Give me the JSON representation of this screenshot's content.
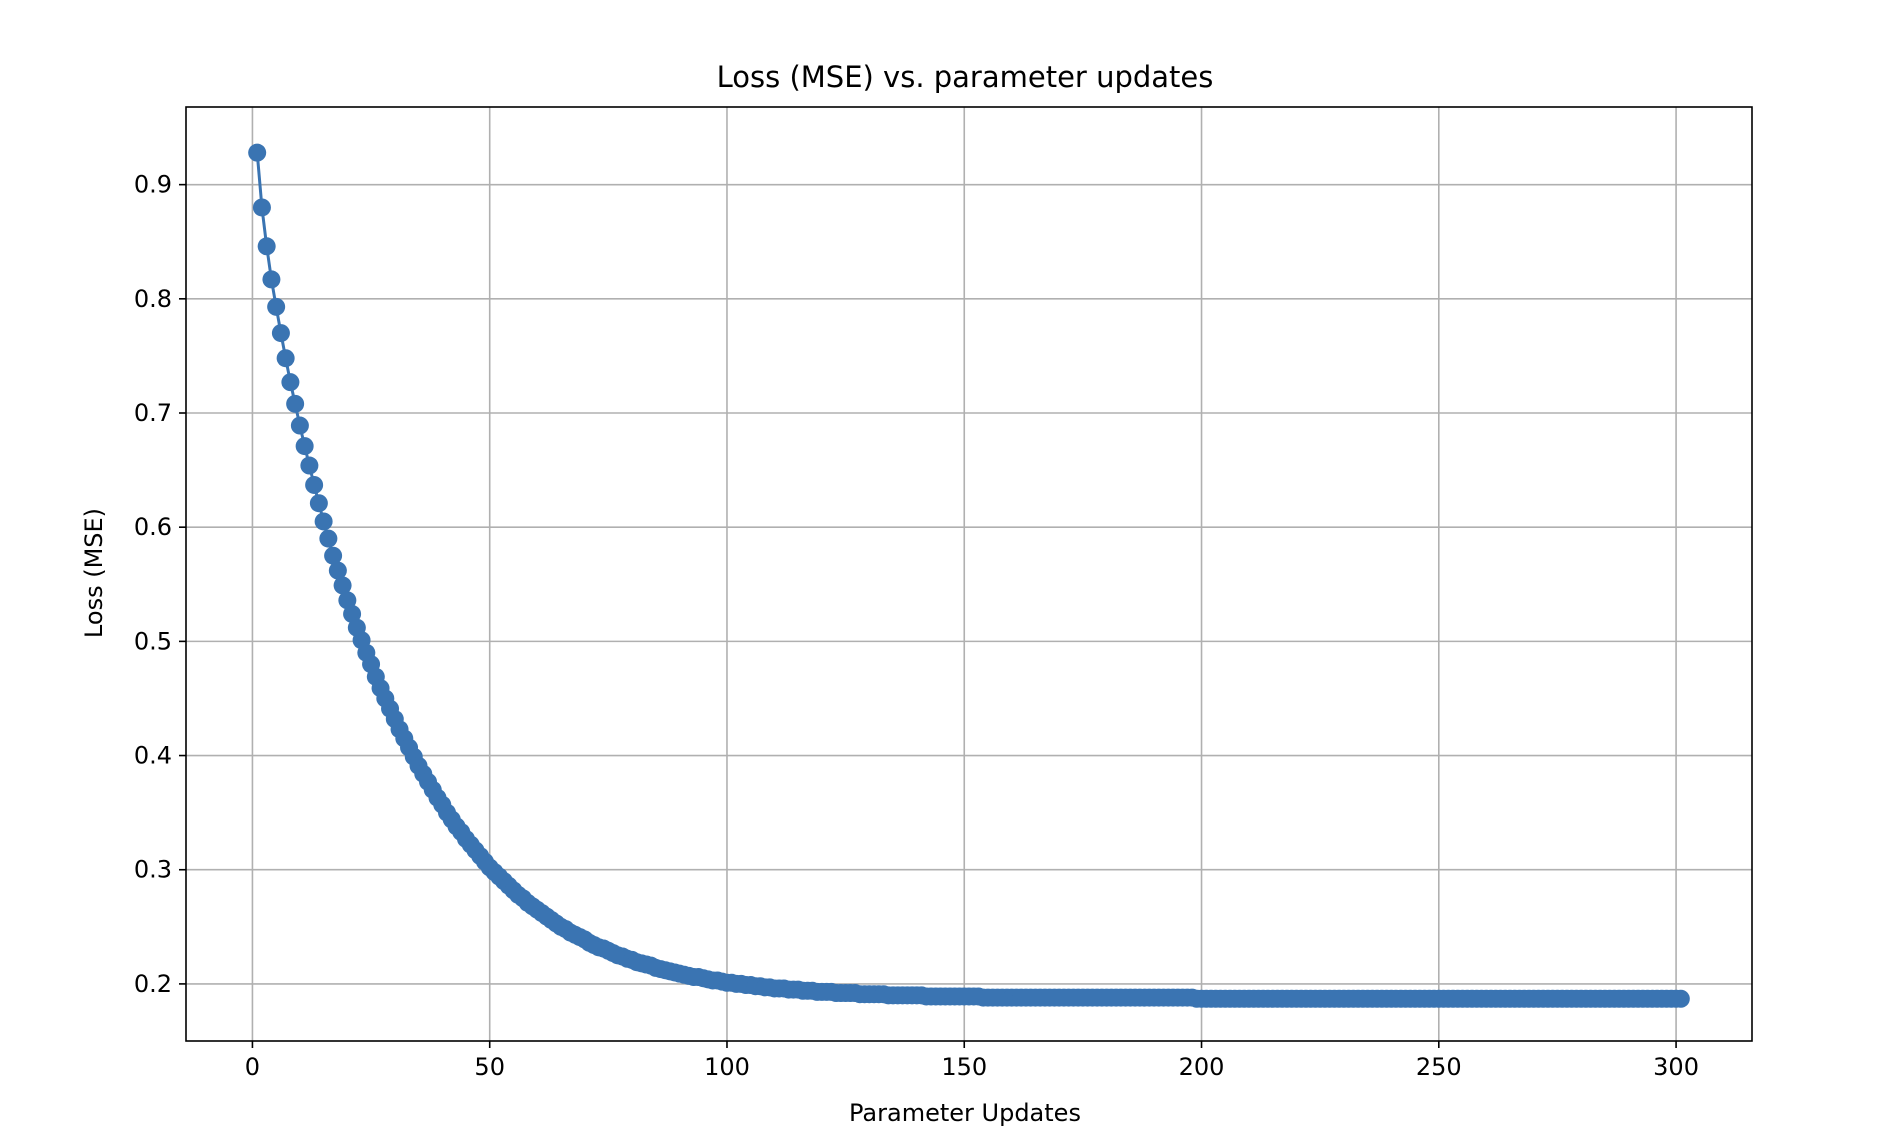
{
  "chart_data": {
    "type": "line",
    "title": "Loss (MSE) vs. parameter updates",
    "xlabel": "Parameter Updates",
    "ylabel": "Loss (MSE)",
    "xlim": [
      -14,
      316
    ],
    "ylim": [
      0.15,
      0.968
    ],
    "xticks": [
      0,
      50,
      100,
      150,
      200,
      250,
      300
    ],
    "yticks": [
      0.2,
      0.3,
      0.4,
      0.5,
      0.6,
      0.7,
      0.8,
      0.9
    ],
    "grid": true,
    "legend": "none",
    "marker": "circle",
    "series": [
      {
        "color": "#3a74b2",
        "x": [
          1,
          2,
          3,
          4,
          5,
          6,
          7,
          8,
          9,
          10,
          11,
          12,
          13,
          14,
          15,
          16,
          17,
          18,
          19,
          20,
          21,
          22,
          23,
          24,
          25,
          26,
          27,
          28,
          29,
          30,
          31,
          32,
          33,
          34,
          35,
          36,
          37,
          38,
          39,
          40,
          41,
          42,
          43,
          44,
          45,
          46,
          47,
          48,
          49,
          50,
          51,
          52,
          53,
          54,
          55,
          56,
          57,
          58,
          59,
          60,
          61,
          62,
          63,
          64,
          65,
          66,
          67,
          68,
          69,
          70,
          71,
          72,
          73,
          74,
          75,
          76,
          77,
          78,
          79,
          80,
          81,
          82,
          83,
          84,
          85,
          86,
          87,
          88,
          89,
          90,
          91,
          92,
          93,
          94,
          95,
          96,
          97,
          98,
          99,
          100,
          101,
          102,
          103,
          104,
          105,
          106,
          107,
          108,
          109,
          110,
          111,
          112,
          113,
          114,
          115,
          116,
          117,
          118,
          119,
          120,
          121,
          122,
          123,
          124,
          125,
          126,
          127,
          128,
          129,
          130,
          131,
          132,
          133,
          134,
          135,
          136,
          137,
          138,
          139,
          140,
          141,
          142,
          143,
          144,
          145,
          146,
          147,
          148,
          149,
          150,
          151,
          152,
          153,
          154,
          155,
          156,
          157,
          158,
          159,
          160,
          161,
          162,
          163,
          164,
          165,
          166,
          167,
          168,
          169,
          170,
          171,
          172,
          173,
          174,
          175,
          176,
          177,
          178,
          179,
          180,
          181,
          182,
          183,
          184,
          185,
          186,
          187,
          188,
          189,
          190,
          191,
          192,
          193,
          194,
          195,
          196,
          197,
          198,
          199,
          200,
          201,
          202,
          203,
          204,
          205,
          206,
          207,
          208,
          209,
          210,
          211,
          212,
          213,
          214,
          215,
          216,
          217,
          218,
          219,
          220,
          221,
          222,
          223,
          224,
          225,
          226,
          227,
          228,
          229,
          230,
          231,
          232,
          233,
          234,
          235,
          236,
          237,
          238,
          239,
          240,
          241,
          242,
          243,
          244,
          245,
          246,
          247,
          248,
          249,
          250,
          251,
          252,
          253,
          254,
          255,
          256,
          257,
          258,
          259,
          260,
          261,
          262,
          263,
          264,
          265,
          266,
          267,
          268,
          269,
          270,
          271,
          272,
          273,
          274,
          275,
          276,
          277,
          278,
          279,
          280,
          281,
          282,
          283,
          284,
          285,
          286,
          287,
          288,
          289,
          290,
          291,
          292,
          293,
          294,
          295,
          296,
          297,
          298,
          299,
          300,
          301
        ],
        "y": [
          0.928,
          0.88,
          0.846,
          0.817,
          0.793,
          0.77,
          0.748,
          0.727,
          0.708,
          0.689,
          0.671,
          0.654,
          0.637,
          0.621,
          0.605,
          0.59,
          0.575,
          0.562,
          0.549,
          0.536,
          0.524,
          0.512,
          0.501,
          0.49,
          0.48,
          0.469,
          0.459,
          0.45,
          0.441,
          0.432,
          0.423,
          0.415,
          0.407,
          0.399,
          0.391,
          0.384,
          0.377,
          0.37,
          0.363,
          0.357,
          0.35,
          0.344,
          0.338,
          0.333,
          0.327,
          0.322,
          0.317,
          0.312,
          0.307,
          0.302,
          0.298,
          0.294,
          0.29,
          0.286,
          0.282,
          0.278,
          0.275,
          0.271,
          0.268,
          0.265,
          0.262,
          0.259,
          0.256,
          0.253,
          0.25,
          0.248,
          0.245,
          0.243,
          0.241,
          0.239,
          0.236,
          0.234,
          0.232,
          0.231,
          0.229,
          0.227,
          0.225,
          0.224,
          0.222,
          0.221,
          0.219,
          0.218,
          0.217,
          0.216,
          0.214,
          0.213,
          0.212,
          0.211,
          0.21,
          0.209,
          0.208,
          0.207,
          0.206,
          0.206,
          0.205,
          0.204,
          0.203,
          0.203,
          0.202,
          0.201,
          0.201,
          0.2,
          0.2,
          0.199,
          0.199,
          0.198,
          0.198,
          0.197,
          0.197,
          0.196,
          0.196,
          0.196,
          0.195,
          0.195,
          0.195,
          0.194,
          0.194,
          0.194,
          0.193,
          0.193,
          0.193,
          0.193,
          0.192,
          0.192,
          0.192,
          0.192,
          0.192,
          0.191,
          0.191,
          0.191,
          0.191,
          0.191,
          0.191,
          0.19,
          0.19,
          0.19,
          0.19,
          0.19,
          0.19,
          0.19,
          0.19,
          0.189,
          0.189,
          0.189,
          0.189,
          0.189,
          0.189,
          0.189,
          0.189,
          0.189,
          0.189,
          0.189,
          0.189,
          0.188,
          0.188,
          0.188,
          0.188,
          0.188,
          0.188,
          0.188,
          0.188,
          0.188,
          0.188,
          0.188,
          0.188,
          0.188,
          0.188,
          0.188,
          0.188,
          0.188,
          0.188,
          0.188,
          0.188,
          0.188,
          0.188,
          0.188,
          0.188,
          0.188,
          0.188,
          0.188,
          0.188,
          0.188,
          0.188,
          0.188,
          0.188,
          0.188,
          0.188,
          0.188,
          0.188,
          0.188,
          0.188,
          0.188,
          0.188,
          0.188,
          0.188,
          0.188,
          0.188,
          0.188,
          0.187,
          0.187,
          0.187,
          0.187,
          0.187,
          0.187,
          0.187,
          0.187,
          0.187,
          0.187,
          0.187,
          0.187,
          0.187,
          0.187,
          0.187,
          0.187,
          0.187,
          0.187,
          0.187,
          0.187,
          0.187,
          0.187,
          0.187,
          0.187,
          0.187,
          0.187,
          0.187,
          0.187,
          0.187,
          0.187,
          0.187,
          0.187,
          0.187,
          0.187,
          0.187,
          0.187,
          0.187,
          0.187,
          0.187,
          0.187,
          0.187,
          0.187,
          0.187,
          0.187,
          0.187,
          0.187,
          0.187,
          0.187,
          0.187,
          0.187,
          0.187,
          0.187,
          0.187,
          0.187,
          0.187,
          0.187,
          0.187,
          0.187,
          0.187,
          0.187,
          0.187,
          0.187,
          0.187,
          0.187,
          0.187,
          0.187,
          0.187,
          0.187,
          0.187,
          0.187,
          0.187,
          0.187,
          0.187,
          0.187,
          0.187,
          0.187,
          0.187,
          0.187,
          0.187,
          0.187,
          0.187,
          0.187,
          0.187,
          0.187,
          0.187,
          0.187,
          0.187,
          0.187,
          0.187,
          0.187,
          0.187,
          0.187,
          0.187,
          0.187,
          0.187,
          0.187,
          0.187,
          0.187,
          0.187,
          0.187,
          0.187,
          0.187,
          0.187
        ]
      }
    ]
  },
  "colors": {
    "series": "#3a74b2",
    "grid": "#b0b0b0",
    "axes": "#000000",
    "background": "#ffffff"
  }
}
